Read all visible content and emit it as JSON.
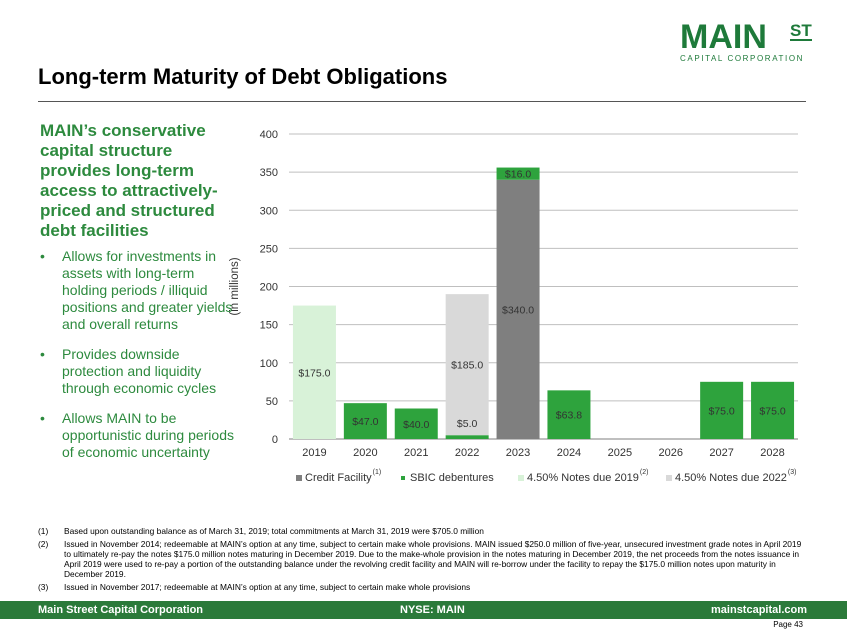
{
  "logo": {
    "main": "MAIN",
    "st": "ST",
    "sub": "CAPITAL CORPORATION"
  },
  "title": "Long-term Maturity of Debt Obligations",
  "lead": "MAIN’s conservative capital structure provides long-term access to attractively-priced and structured debt facilities",
  "bullets": [
    "Allows for investments in assets with long-term holding periods / illiquid positions and greater yields and overall returns",
    "Provides downside protection and liquidity through economic cycles",
    "Allows MAIN to be opportunistic during periods of economic uncertainty"
  ],
  "colors": {
    "credit_facility": "#7f7f7f",
    "sbic": "#2ea33d",
    "notes_2019": "#d8f2d8",
    "notes_2022": "#d9d9d9",
    "footer": "#2b7a3a",
    "text_green": "#2d8a3e"
  },
  "chart_data": {
    "type": "bar",
    "stacked": true,
    "categories": [
      "2019",
      "2020",
      "2021",
      "2022",
      "2023",
      "2024",
      "2025",
      "2026",
      "2027",
      "2028"
    ],
    "ylabel": "(in millions)",
    "ylim": [
      0,
      400
    ],
    "yticks": [
      0,
      50,
      100,
      150,
      200,
      250,
      300,
      350,
      400
    ],
    "grid": true,
    "legend_position": "bottom",
    "series": [
      {
        "name": "Credit Facility",
        "note": "(1)",
        "values": [
          0,
          0,
          0,
          0,
          340.0,
          0,
          0,
          0,
          0,
          0
        ]
      },
      {
        "name": "SBIC debentures",
        "note": "",
        "values": [
          0,
          47.0,
          40.0,
          5.0,
          16.0,
          63.8,
          0,
          0,
          75.0,
          75.0
        ]
      },
      {
        "name": "4.50% Notes due 2019",
        "note": "(2)",
        "values": [
          175.0,
          0,
          0,
          0,
          0,
          0,
          0,
          0,
          0,
          0
        ]
      },
      {
        "name": "4.50% Notes due 2022",
        "note": "(3)",
        "values": [
          0,
          0,
          0,
          185.0,
          0,
          0,
          0,
          0,
          0,
          0
        ]
      }
    ],
    "data_labels": [
      {
        "category": "2019",
        "series": "4.50% Notes due 2019",
        "text": "$175.0"
      },
      {
        "category": "2020",
        "series": "SBIC debentures",
        "text": "$47.0"
      },
      {
        "category": "2021",
        "series": "SBIC debentures",
        "text": "$40.0"
      },
      {
        "category": "2022",
        "series": "SBIC debentures",
        "text": "$5.0"
      },
      {
        "category": "2022",
        "series": "4.50% Notes due 2022",
        "text": "$185.0"
      },
      {
        "category": "2023",
        "series": "Credit Facility",
        "text": "$340.0"
      },
      {
        "category": "2023",
        "series": "SBIC debentures",
        "text": "$16.0"
      },
      {
        "category": "2024",
        "series": "SBIC debentures",
        "text": "$63.8"
      },
      {
        "category": "2027",
        "series": "SBIC debentures",
        "text": "$75.0"
      },
      {
        "category": "2028",
        "series": "SBIC debentures",
        "text": "$75.0"
      }
    ]
  },
  "footnotes": [
    {
      "num": "(1)",
      "text": "Based upon outstanding balance as of March 31, 2019; total commitments at March 31, 2019 were $705.0 million"
    },
    {
      "num": "(2)",
      "text": "Issued in November 2014; redeemable at MAIN’s option at any time, subject to certain make whole provisions. MAIN issued $250.0 million of five-year, unsecured investment grade notes in April 2019 to ultimately re-pay the notes $175.0 million notes maturing in December 2019.  Due to the make-whole provision in the notes maturing in December 2019, the net proceeds from the notes issuance in April 2019 were used to re-pay a portion of the outstanding balance under the revolving credit facility and MAIN will re-borrow under the facility to repay the $175.0 million notes upon maturity in December 2019."
    },
    {
      "num": "(3)",
      "text": "Issued in November 2017; redeemable at MAIN’s option at any time, subject to certain make whole provisions"
    }
  ],
  "footer": {
    "left": "Main Street Capital Corporation",
    "middle": "NYSE: MAIN",
    "right": "mainstcapital.com"
  },
  "page": "Page  43"
}
